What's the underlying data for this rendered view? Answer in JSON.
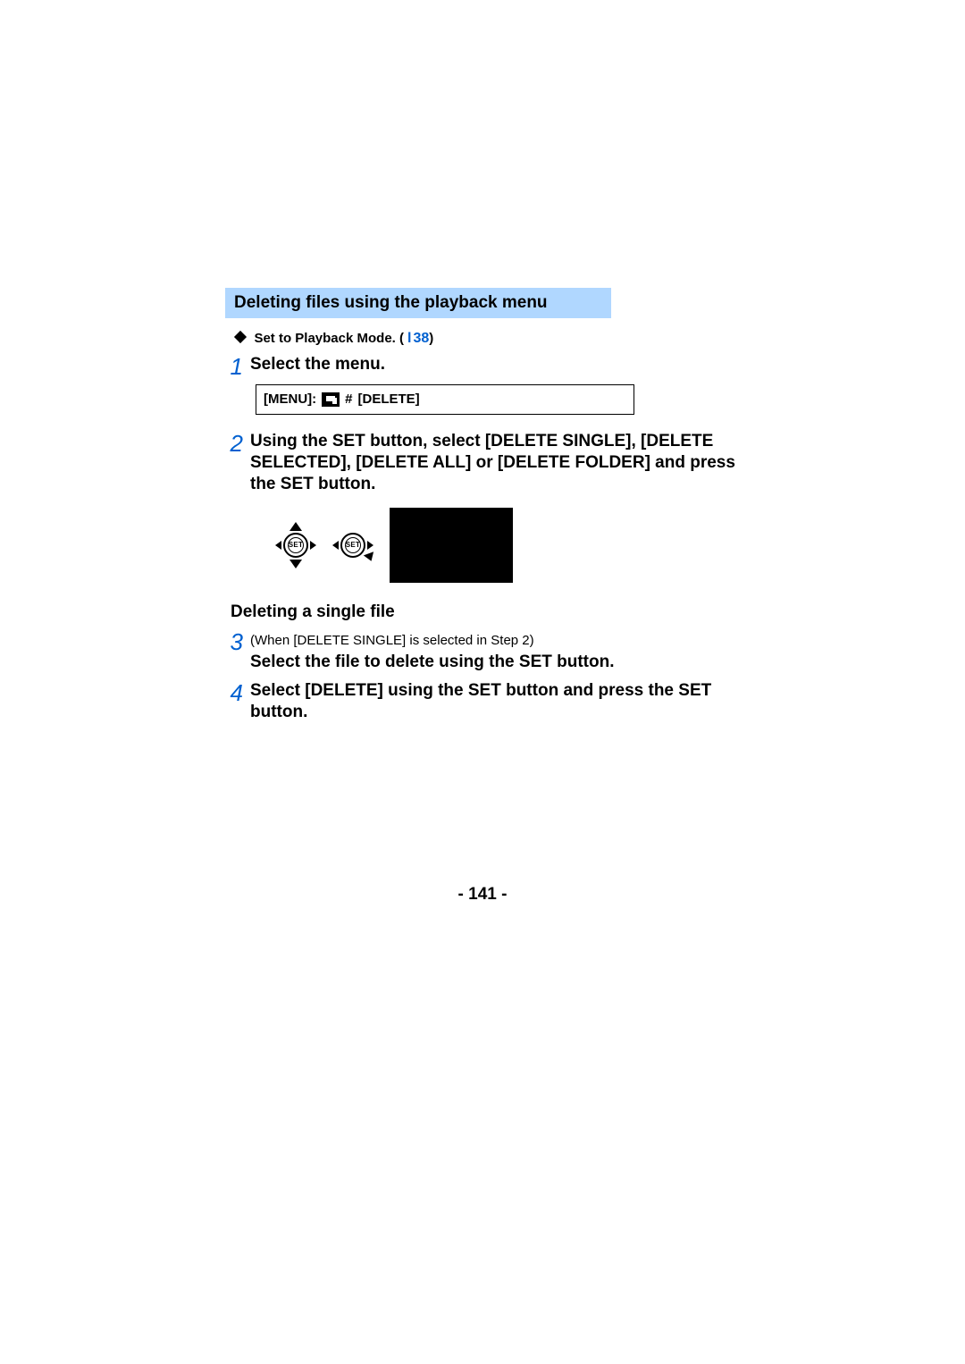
{
  "colors": {
    "section_bg": "#b0d7ff",
    "accent": "#0060d0",
    "text": "#000000",
    "page_bg": "#ffffff",
    "screen_bg": "#000000"
  },
  "section_title": "Deleting files using the playback menu",
  "intro": {
    "text": "Set to Playback Mode. (",
    "link_glyph": "l",
    "page_ref": "38",
    "close": ")"
  },
  "menu_box": {
    "menu_label": "[MENU]:",
    "arrow": "#",
    "delete_label": "[DELETE]"
  },
  "set_label": "SET",
  "subheading": "Deleting a single file",
  "steps": [
    {
      "n": "1",
      "bold": "Select the menu."
    },
    {
      "n": "2",
      "bold": "Using the SET button, select [DELETE SINGLE], [DELETE SELECTED], [DELETE ALL] or [DELETE FOLDER] and press the SET button."
    },
    {
      "n": "3",
      "note": "(When [DELETE SINGLE] is selected in Step 2)",
      "bold": "Select the file to delete using the SET button."
    },
    {
      "n": "4",
      "bold": "Select [DELETE] using the SET button and press the SET button."
    }
  ],
  "page_number": "- 141 -"
}
